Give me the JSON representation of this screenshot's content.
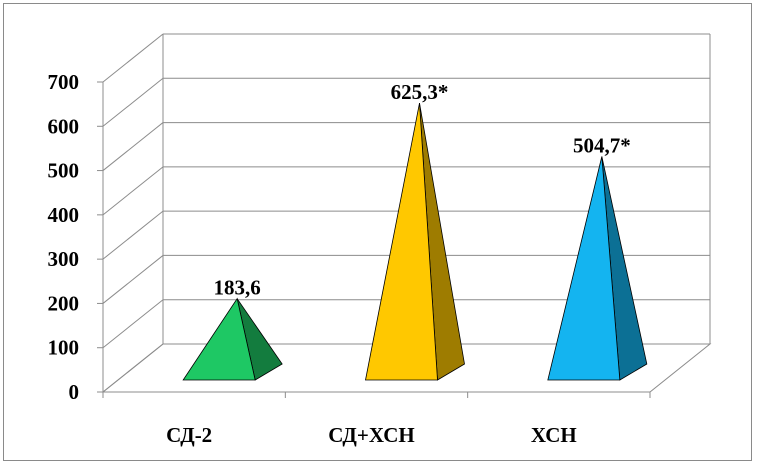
{
  "chart_data": {
    "type": "bar",
    "style": "3d-pyramid",
    "categories": [
      "СД-2",
      "СД+ХСН",
      "ХСН"
    ],
    "values": [
      183.6,
      625.3,
      504.7
    ],
    "data_labels": [
      "183,6",
      "625,3*",
      "504,7*"
    ],
    "colors": [
      "#1ec864",
      "#ffc800",
      "#14b4f0"
    ],
    "ylim": [
      0,
      700
    ],
    "yticks": [
      "0",
      "100",
      "200",
      "300",
      "400",
      "500",
      "600",
      "700"
    ],
    "grid": true,
    "title": "",
    "xlabel": "",
    "ylabel": ""
  }
}
